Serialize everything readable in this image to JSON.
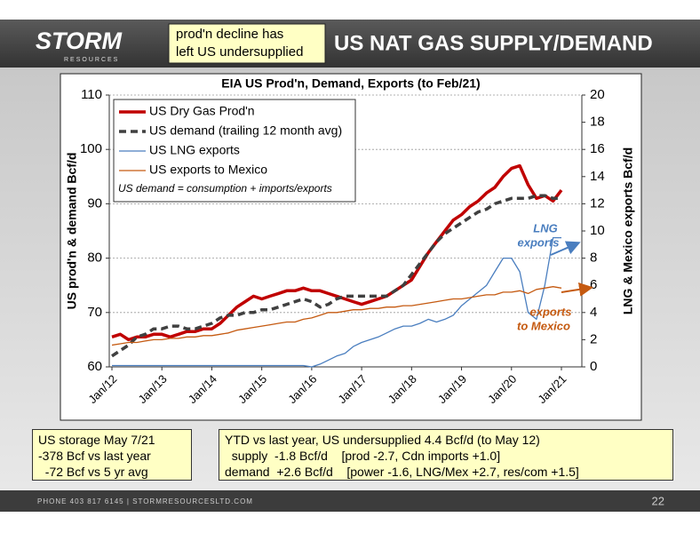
{
  "header": {
    "logo": "STORM",
    "logo_sub": "RESOURCES",
    "callout": [
      "prod'n decline has",
      "left US undersupplied"
    ],
    "title": "US NAT GAS SUPPLY/DEMAND"
  },
  "chart_data": {
    "type": "line",
    "title": "EIA US Prod'n, Demand, Exports (to Feb/21)",
    "y_label": "US prod'n & demand Bcf/d",
    "y2_label": "LNG & Mexico exports Bcf/d",
    "categories": [
      "Jan/12",
      null,
      null,
      null,
      null,
      null,
      "Jan/13",
      null,
      null,
      null,
      null,
      null,
      "Jan/14",
      null,
      null,
      null,
      null,
      null,
      "Jan/15",
      null,
      null,
      null,
      null,
      null,
      "Jan/16",
      null,
      null,
      null,
      null,
      null,
      "Jan/17",
      null,
      null,
      null,
      null,
      null,
      "Jan/18",
      null,
      null,
      null,
      null,
      null,
      "Jan/19",
      null,
      null,
      null,
      null,
      null,
      "Jan/20",
      null,
      null,
      null,
      null,
      null,
      "Jan/21"
    ],
    "series": [
      {
        "name": "US Dry Gas Prod'n",
        "color": "#c00000",
        "width": 3.5,
        "style": "solid",
        "values": [
          65.5,
          66,
          65,
          65.5,
          65.5,
          66,
          66,
          65.5,
          66,
          66.5,
          66.5,
          67,
          67,
          68,
          69.5,
          71,
          72,
          73,
          72.5,
          73,
          73.5,
          74,
          74,
          74.5,
          74,
          74,
          73.5,
          73,
          72.5,
          72,
          71.5,
          72,
          72.5,
          73,
          74,
          75,
          76,
          78.5,
          81,
          83,
          85,
          87,
          88,
          89.5,
          90.5,
          92,
          93,
          95,
          96.5,
          97,
          93.5,
          91,
          91.5,
          90.5,
          92.5
        ]
      },
      {
        "name": "US demand (trailing 12 month avg)",
        "color": "#404040",
        "width": 3.5,
        "style": "dashed",
        "values": [
          62,
          63,
          64,
          65.5,
          66,
          67,
          67,
          67.5,
          67.5,
          67,
          67,
          67.5,
          68,
          69,
          69.5,
          69.5,
          70,
          70,
          70.5,
          70.5,
          71,
          71.5,
          72,
          72.5,
          72,
          71,
          71.5,
          72.5,
          73,
          73,
          73,
          73,
          73,
          73,
          74,
          75,
          77,
          79,
          81,
          83,
          84.5,
          85.5,
          86.5,
          87.5,
          88.5,
          89,
          90,
          90.5,
          91,
          91,
          91,
          91.5,
          91.5,
          91,
          91
        ]
      },
      {
        "name": "US LNG exports",
        "color": "#4a7ebf",
        "width": 1.3,
        "style": "solid",
        "axis": "y2",
        "values": [
          0.1,
          0.1,
          0.1,
          0.1,
          0.1,
          0.1,
          0.1,
          0.1,
          0.1,
          0.1,
          0.1,
          0.1,
          0.1,
          0.1,
          0.1,
          0.1,
          0.1,
          0.1,
          0.1,
          0.1,
          0.1,
          0.1,
          0.1,
          0.1,
          0,
          0.2,
          0.5,
          0.8,
          1,
          1.5,
          1.8,
          2,
          2.2,
          2.5,
          2.8,
          3,
          3,
          3.2,
          3.5,
          3.3,
          3.5,
          3.8,
          4.5,
          5,
          5.5,
          6,
          7,
          8,
          8,
          7,
          4,
          3.5,
          6,
          9.5,
          9.5
        ]
      },
      {
        "name": "US exports to Mexico",
        "color": "#c55a11",
        "width": 1.3,
        "style": "solid",
        "axis": "y2",
        "values": [
          1.6,
          1.7,
          1.8,
          1.8,
          1.9,
          2,
          2,
          2.1,
          2.1,
          2.2,
          2.2,
          2.3,
          2.3,
          2.4,
          2.5,
          2.7,
          2.8,
          2.9,
          3,
          3.1,
          3.2,
          3.3,
          3.3,
          3.5,
          3.6,
          3.8,
          4,
          4,
          4.1,
          4.2,
          4.2,
          4.3,
          4.3,
          4.4,
          4.4,
          4.5,
          4.5,
          4.6,
          4.7,
          4.8,
          4.9,
          5,
          5,
          5.1,
          5.2,
          5.3,
          5.3,
          5.5,
          5.5,
          5.6,
          5.4,
          5.7,
          5.8,
          5.9,
          5.8
        ]
      }
    ],
    "ylim": [
      60,
      110
    ],
    "yticks": [
      60,
      70,
      80,
      90,
      100,
      110
    ],
    "y2lim": [
      0,
      20
    ],
    "y2ticks": [
      0,
      2,
      4,
      6,
      8,
      10,
      12,
      14,
      16,
      18,
      20
    ],
    "grid": true,
    "annotations": {
      "note": "US demand = consumption + imports/exports",
      "lng": [
        "LNG",
        "exports"
      ],
      "mexico": [
        "exports",
        "to Mexico"
      ]
    }
  },
  "storage_box": {
    "lines": [
      "US storage May 7/21",
      "-378 Bcf vs last year",
      "  -72 Bcf vs 5 yr avg"
    ]
  },
  "ytd_box": {
    "lines": [
      "YTD vs last year, US undersupplied 4.4 Bcf/d (to May 12)",
      "  supply  -1.8 Bcf/d    [prod -2.7, Cdn imports +1.0]",
      "demand  +2.6 Bcf/d    [power -1.6, LNG/Mex +2.7, res/com +1.5]"
    ]
  },
  "footer": {
    "contact": "PHONE 403 817 6145  |  STORMRESOURCESLTD.COM",
    "page": "22"
  }
}
